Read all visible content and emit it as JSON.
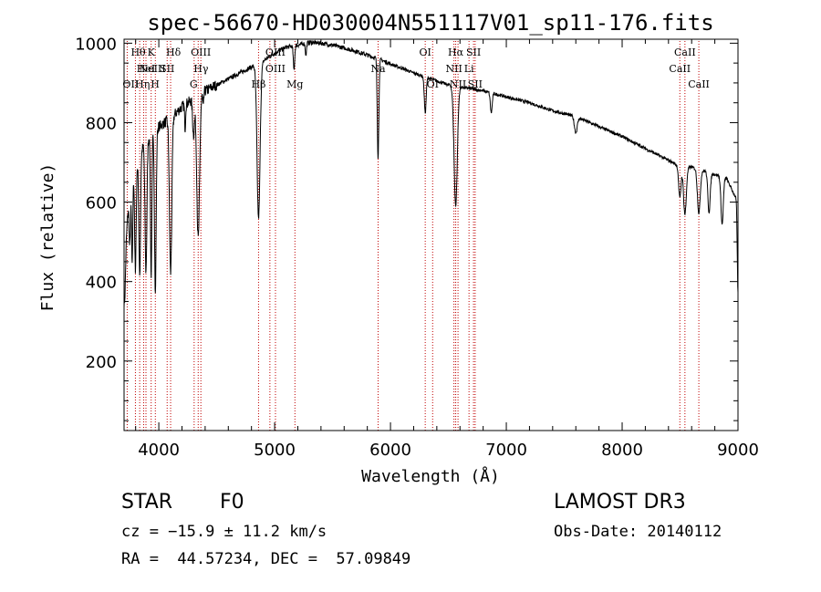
{
  "chart_data": {
    "type": "line",
    "title": "spec-56670-HD030004N551117V01_sp11-176.fits",
    "xlabel": "Wavelength (Å)",
    "ylabel": "Flux (relative)",
    "xlim": [
      3700,
      9000
    ],
    "ylim": [
      25,
      1010
    ],
    "x_ticks": [
      4000,
      5000,
      6000,
      7000,
      8000,
      9000
    ],
    "y_ticks": [
      200,
      400,
      600,
      800,
      1000
    ],
    "continuum": [
      [
        3700,
        430
      ],
      [
        3720,
        520
      ],
      [
        3750,
        640
      ],
      [
        3800,
        680
      ],
      [
        3850,
        730
      ],
      [
        3900,
        760
      ],
      [
        3950,
        780
      ],
      [
        4000,
        790
      ],
      [
        4050,
        800
      ],
      [
        4100,
        810
      ],
      [
        4150,
        825
      ],
      [
        4200,
        840
      ],
      [
        4250,
        850
      ],
      [
        4300,
        860
      ],
      [
        4400,
        880
      ],
      [
        4500,
        895
      ],
      [
        4600,
        910
      ],
      [
        4700,
        925
      ],
      [
        4800,
        940
      ],
      [
        4900,
        955
      ],
      [
        5000,
        975
      ],
      [
        5100,
        990
      ],
      [
        5200,
        995
      ],
      [
        5300,
        1002
      ],
      [
        5400,
        1000
      ],
      [
        5500,
        995
      ],
      [
        5600,
        988
      ],
      [
        5700,
        980
      ],
      [
        5800,
        970
      ],
      [
        5900,
        960
      ],
      [
        6000,
        948
      ],
      [
        6200,
        925
      ],
      [
        6400,
        905
      ],
      [
        6500,
        895
      ],
      [
        6600,
        890
      ],
      [
        6800,
        880
      ],
      [
        7000,
        865
      ],
      [
        7200,
        850
      ],
      [
        7400,
        830
      ],
      [
        7600,
        815
      ],
      [
        7800,
        790
      ],
      [
        8000,
        765
      ],
      [
        8200,
        735
      ],
      [
        8400,
        705
      ],
      [
        8500,
        690
      ],
      [
        8600,
        688
      ],
      [
        8800,
        670
      ],
      [
        8900,
        660
      ],
      [
        9000,
        600
      ]
    ],
    "absorption_features": [
      {
        "wavelength": 3705,
        "depth": 100,
        "width": 8
      },
      {
        "wavelength": 3750,
        "depth": 150,
        "width": 6
      },
      {
        "wavelength": 3770,
        "depth": 220,
        "width": 5
      },
      {
        "wavelength": 3798,
        "depth": 260,
        "width": 6
      },
      {
        "wavelength": 3835,
        "depth": 300,
        "width": 7
      },
      {
        "wavelength": 3889,
        "depth": 330,
        "width": 8
      },
      {
        "wavelength": 3934,
        "depth": 360,
        "width": 6
      },
      {
        "wavelength": 3970,
        "depth": 420,
        "width": 7
      },
      {
        "wavelength": 4102,
        "depth": 390,
        "width": 10
      },
      {
        "wavelength": 4227,
        "depth": 60,
        "width": 4
      },
      {
        "wavelength": 4300,
        "depth": 90,
        "width": 8
      },
      {
        "wavelength": 4340,
        "depth": 360,
        "width": 12
      },
      {
        "wavelength": 4384,
        "depth": 40,
        "width": 4
      },
      {
        "wavelength": 4861,
        "depth": 390,
        "width": 13
      },
      {
        "wavelength": 5167,
        "depth": 60,
        "width": 6
      },
      {
        "wavelength": 5270,
        "depth": 30,
        "width": 5
      },
      {
        "wavelength": 5890,
        "depth": 150,
        "width": 6
      },
      {
        "wavelength": 5896,
        "depth": 130,
        "width": 6
      },
      {
        "wavelength": 6300,
        "depth": 90,
        "width": 8
      },
      {
        "wavelength": 6563,
        "depth": 300,
        "width": 14
      },
      {
        "wavelength": 6870,
        "depth": 50,
        "width": 8
      },
      {
        "wavelength": 7600,
        "depth": 40,
        "width": 12
      },
      {
        "wavelength": 8498,
        "depth": 80,
        "width": 10
      },
      {
        "wavelength": 8542,
        "depth": 120,
        "width": 12
      },
      {
        "wavelength": 8662,
        "depth": 110,
        "width": 12
      },
      {
        "wavelength": 8750,
        "depth": 100,
        "width": 10
      },
      {
        "wavelength": 8863,
        "depth": 120,
        "width": 10
      },
      {
        "wavelength": 9000,
        "depth": 230,
        "width": 6
      }
    ],
    "line_markers": [
      {
        "wavelength": 3727,
        "label": "OII",
        "row": 2,
        "align": "start"
      },
      {
        "wavelength": 3798,
        "label": "Hθ",
        "row": 0,
        "align": "start"
      },
      {
        "wavelength": 3835,
        "label": "Hη",
        "row": 2,
        "align": "start"
      },
      {
        "wavelength": 3869,
        "label": "NeIII",
        "row": 1,
        "align": "start"
      },
      {
        "wavelength": 3889,
        "label": "HeI",
        "row": 1,
        "align": "middle"
      },
      {
        "wavelength": 3934,
        "label": "K",
        "row": 0,
        "align": "middle"
      },
      {
        "wavelength": 3970,
        "label": "H",
        "row": 2,
        "align": "start"
      },
      {
        "wavelength": 4072,
        "label": "SII",
        "row": 1,
        "align": "middle"
      },
      {
        "wavelength": 4102,
        "label": "Hδ",
        "row": 0,
        "align": "start"
      },
      {
        "wavelength": 4305,
        "label": "G",
        "row": 2,
        "align": "start"
      },
      {
        "wavelength": 4340,
        "label": "Hγ",
        "row": 1,
        "align": "start"
      },
      {
        "wavelength": 4363,
        "label": "OIII",
        "row": 0,
        "align": "middle"
      },
      {
        "wavelength": 4861,
        "label": "Hβ",
        "row": 2,
        "align": "middle"
      },
      {
        "wavelength": 4959,
        "label": "OIII",
        "row": 1,
        "align": "start"
      },
      {
        "wavelength": 5007,
        "label": "OIII",
        "row": 0,
        "align": "middle"
      },
      {
        "wavelength": 5175,
        "label": "Mg",
        "row": 2,
        "align": "middle"
      },
      {
        "wavelength": 5893,
        "label": "Na",
        "row": 1,
        "align": "middle"
      },
      {
        "wavelength": 6300,
        "label": "OI",
        "row": 0,
        "align": "middle"
      },
      {
        "wavelength": 6364,
        "label": "OI",
        "row": 2,
        "align": "middle"
      },
      {
        "wavelength": 6548,
        "label": "NII",
        "row": 1,
        "align": "middle"
      },
      {
        "wavelength": 6563,
        "label": "Hα",
        "row": 0,
        "align": "middle"
      },
      {
        "wavelength": 6583,
        "label": "NII",
        "row": 2,
        "align": "middle"
      },
      {
        "wavelength": 6678,
        "label": "Li",
        "row": 1,
        "align": "middle"
      },
      {
        "wavelength": 6717,
        "label": "SII",
        "row": 0,
        "align": "middle"
      },
      {
        "wavelength": 6731,
        "label": "SII",
        "row": 2,
        "align": "middle"
      },
      {
        "wavelength": 8498,
        "label": "CaII",
        "row": 1,
        "align": "middle"
      },
      {
        "wavelength": 8542,
        "label": "CaII",
        "row": 0,
        "align": "middle"
      },
      {
        "wavelength": 8662,
        "label": "CaII",
        "row": 2,
        "align": "middle"
      }
    ],
    "colors": {
      "spectrum": "#000000",
      "marker": "#c00000",
      "axis": "#000000"
    }
  },
  "info": {
    "object_class": "STAR",
    "subclass": "F0",
    "survey": "LAMOST DR3",
    "cz": "cz = −15.9 ± 11.2 km/s",
    "obs_date": "Obs-Date: 20140112",
    "coords": "RA =  44.57234, DEC =  57.09849"
  }
}
